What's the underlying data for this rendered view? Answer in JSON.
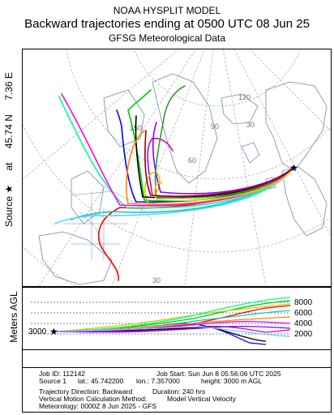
{
  "header": {
    "title": "NOAA HYSPLIT MODEL",
    "subtitle": "Backward trajectories ending at 0500 UTC 08 Jun 25",
    "data_source": "GFSG Meteorological Data"
  },
  "side_label": {
    "prefix": "Source",
    "star": "★",
    "at": "at",
    "lat": "45.74 N",
    "lon": "7.36 E"
  },
  "map": {
    "grid_labels": [
      "120",
      "90",
      "60",
      "30",
      "150",
      "30"
    ],
    "source_marker": "★"
  },
  "vertical_panel": {
    "axis_label": "Meters AGL",
    "start_height": "3000",
    "ticks": [
      "8000",
      "6000",
      "4000",
      "2000"
    ]
  },
  "info": {
    "job_id": "Job ID: 112142",
    "job_start": "Job Start: Sun Jun  8 05:56:06 UTC 2025",
    "source": "Source 1",
    "lat": "lat.: 45.742200",
    "lon": "lon.: 7.357000",
    "height": "height: 3000 m AGL",
    "direction": "Trajectory Direction: Backward",
    "duration": "Duration: 240 hrs",
    "vertical_method": "Vertical Motion Calculation Method:",
    "vertical_value": "Model Vertical Velocity",
    "meteorology": "Meteorology: 0000Z 8 Jun 2025 - GFS"
  },
  "colors": {
    "trajectories": [
      "#ff0000",
      "#0000ff",
      "#00cc00",
      "#00cccc",
      "#cc00cc",
      "#cccc00",
      "#000000",
      "#ff8800",
      "#8800ff",
      "#00ff88"
    ]
  }
}
